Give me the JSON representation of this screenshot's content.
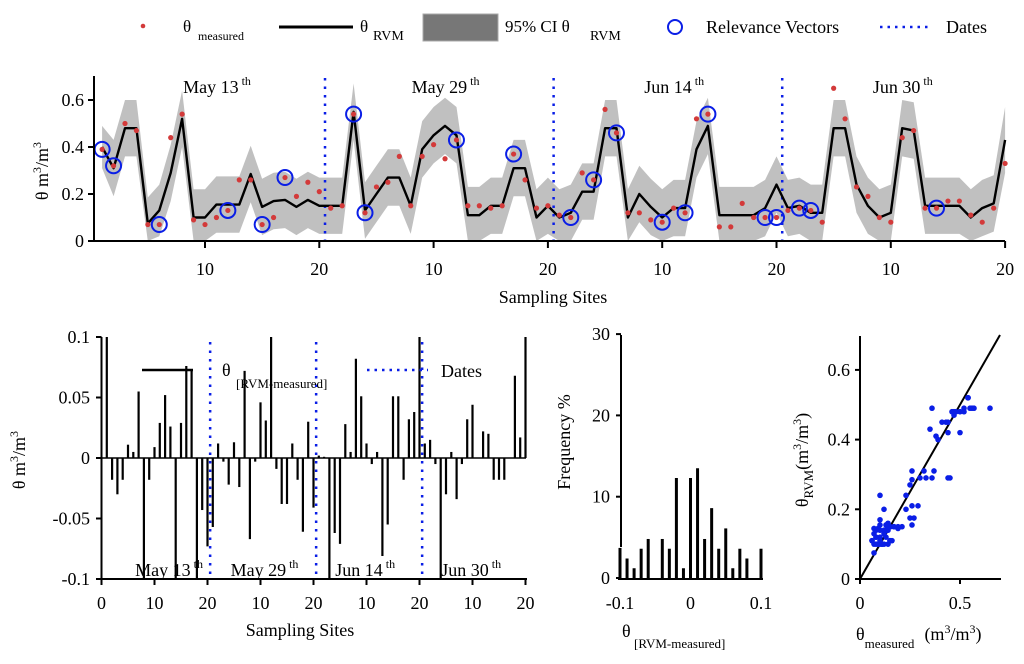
{
  "legend": {
    "items": [
      {
        "key": "measured",
        "symbol": "red-dot",
        "label": "θ",
        "sub": "measured"
      },
      {
        "key": "rvm",
        "symbol": "black-line",
        "label": "θ",
        "sub": "RVM"
      },
      {
        "key": "ci",
        "symbol": "gray-box",
        "label": "95% CI θ",
        "sub": "RVM"
      },
      {
        "key": "rv",
        "symbol": "blue-circle",
        "label": "Relevance Vectors",
        "sub": ""
      },
      {
        "key": "dates",
        "symbol": "blue-dotted-line",
        "label": "Dates",
        "sub": ""
      }
    ]
  },
  "colors": {
    "measured": "#d33a3a",
    "rvm_line": "#000000",
    "ci_band": "#c0c0c0",
    "legend_ci_box": "#777777",
    "relevance_vector": "#0a1ee6",
    "dates_line": "#0a1ee6",
    "scatter_point": "#0a1ee6",
    "bars": "#000000"
  },
  "chart_data": [
    {
      "id": "timeseries",
      "type": "line",
      "title": "",
      "xlabel": "Sampling Sites",
      "ylabel": "θ m³/m³",
      "ylabel_parts": {
        "base": "θ m",
        "sup1": "3",
        "mid": "/m",
        "sup2": "3"
      },
      "ylim": [
        0,
        0.7
      ],
      "yticks": [
        0,
        0.2,
        0.4,
        0.6
      ],
      "ytick_labels": [
        "0",
        "0.2",
        "0.4",
        "0.6"
      ],
      "xlim": [
        0.5,
        80
      ],
      "xticks": [
        10,
        20,
        30,
        40,
        50,
        60,
        70,
        80
      ],
      "xtick_labels": [
        "10",
        "20",
        "10",
        "20",
        "10",
        "20",
        "10",
        "20"
      ],
      "date_lines": [
        20.5,
        40.5,
        60.5
      ],
      "date_labels": [
        {
          "text": "May 13",
          "sup": "th",
          "site": 10
        },
        {
          "text": "May 29",
          "sup": "th",
          "site": 30
        },
        {
          "text": "Jun 14",
          "sup": "th",
          "site": 50
        },
        {
          "text": "Jun 30",
          "sup": "th",
          "site": 70
        }
      ],
      "rvm": [
        0.4,
        0.31,
        0.48,
        0.48,
        0.075,
        0.13,
        0.29,
        0.52,
        0.1,
        0.1,
        0.155,
        0.155,
        0.155,
        0.285,
        0.145,
        0.17,
        0.175,
        0.145,
        0.175,
        0.15,
        0.15,
        0.15,
        0.55,
        0.13,
        0.2,
        0.27,
        0.27,
        0.15,
        0.39,
        0.45,
        0.49,
        0.45,
        0.11,
        0.11,
        0.15,
        0.15,
        0.31,
        0.31,
        0.1,
        0.15,
        0.1,
        0.12,
        0.21,
        0.21,
        0.48,
        0.48,
        0.1,
        0.2,
        0.145,
        0.1,
        0.14,
        0.14,
        0.39,
        0.49,
        0.11,
        0.11,
        0.11,
        0.11,
        0.14,
        0.24,
        0.14,
        0.15,
        0.12,
        0.12,
        0.48,
        0.48,
        0.24,
        0.15,
        0.1,
        0.12,
        0.48,
        0.47,
        0.15,
        0.15,
        0.15,
        0.15,
        0.1,
        0.14,
        0.16,
        0.43
      ],
      "ci_halfwidth": [
        0.09,
        0.12,
        0.12,
        0.12,
        0.11,
        0.11,
        0.12,
        0.12,
        0.12,
        0.12,
        0.12,
        0.12,
        0.12,
        0.12,
        0.12,
        0.12,
        0.12,
        0.12,
        0.12,
        0.12,
        0.12,
        0.12,
        0.12,
        0.12,
        0.12,
        0.12,
        0.12,
        0.12,
        0.12,
        0.12,
        0.12,
        0.12,
        0.12,
        0.12,
        0.12,
        0.12,
        0.12,
        0.12,
        0.12,
        0.12,
        0.12,
        0.12,
        0.12,
        0.12,
        0.12,
        0.12,
        0.12,
        0.12,
        0.12,
        0.12,
        0.12,
        0.12,
        0.12,
        0.12,
        0.12,
        0.12,
        0.12,
        0.12,
        0.12,
        0.12,
        0.12,
        0.12,
        0.12,
        0.12,
        0.12,
        0.12,
        0.12,
        0.12,
        0.12,
        0.12,
        0.12,
        0.12,
        0.12,
        0.12,
        0.12,
        0.12,
        0.12,
        0.12,
        0.12,
        0.14
      ],
      "measured": [
        0.39,
        0.32,
        0.5,
        0.47,
        0.07,
        0.07,
        0.44,
        0.54,
        0.09,
        0.07,
        0.1,
        0.13,
        0.26,
        0.26,
        0.07,
        0.1,
        0.27,
        0.19,
        0.25,
        0.21,
        0.14,
        0.15,
        0.54,
        0.12,
        0.23,
        0.25,
        0.36,
        0.15,
        0.36,
        0.41,
        0.35,
        0.43,
        0.15,
        0.15,
        0.14,
        0.15,
        0.37,
        0.26,
        0.14,
        0.15,
        0.11,
        0.1,
        0.29,
        0.26,
        0.56,
        0.46,
        0.12,
        0.12,
        0.09,
        0.08,
        0.14,
        0.12,
        0.52,
        0.54,
        0.06,
        0.06,
        0.16,
        0.1,
        0.1,
        0.1,
        0.13,
        0.14,
        0.13,
        0.08,
        0.65,
        0.52,
        0.23,
        0.19,
        0.1,
        0.08,
        0.44,
        0.47,
        0.14,
        0.14,
        0.17,
        0.17,
        0.11,
        0.08,
        0.14,
        0.33
      ],
      "relevance_vector_sites": [
        1,
        2,
        6,
        12,
        15,
        17,
        23,
        24,
        32,
        37,
        42,
        44,
        46,
        50,
        52,
        54,
        59,
        60,
        62,
        63,
        74
      ]
    },
    {
      "id": "residuals",
      "type": "bar",
      "xlabel": "Sampling Sites",
      "ylabel": "θ m³/m³",
      "ylim": [
        -0.1,
        0.1
      ],
      "yticks": [
        -0.1,
        -0.05,
        0,
        0.05,
        0.1
      ],
      "ytick_labels": [
        "-0.1",
        "-0.05",
        "0",
        "0.05",
        "0.1"
      ],
      "xticks": [
        0,
        10,
        20,
        30,
        40,
        50,
        60,
        70,
        80
      ],
      "xtick_labels": [
        "0",
        "10",
        "20",
        "10",
        "20",
        "10",
        "20",
        "10",
        "20"
      ],
      "date_lines": [
        20.5,
        40.5,
        60.5
      ],
      "date_labels": [
        {
          "text": "May 13",
          "sup": "th",
          "site": 12
        },
        {
          "text": "May 29",
          "sup": "th",
          "site": 30
        },
        {
          "text": "Jun 14",
          "sup": "th",
          "site": 49
        },
        {
          "text": "Jun 30",
          "sup": "th",
          "site": 69
        }
      ],
      "legend": [
        {
          "symbol": "black-line",
          "label": "θ",
          "sub": "[RVM-measured]"
        },
        {
          "symbol": "blue-dotted-line",
          "label": "Dates"
        }
      ],
      "values": [
        0.1,
        -0.018,
        -0.03,
        -0.018,
        0.011,
        0.005,
        0.055,
        -0.1,
        -0.018,
        0.009,
        0.029,
        0.052,
        0.026,
        -0.1,
        0.029,
        0.076,
        0.072,
        -0.1,
        -0.043,
        -0.073,
        -0.057,
        0.012,
        -0.003,
        -0.022,
        0.013,
        -0.024,
        0.072,
        -0.067,
        -0.003,
        0.046,
        0.031,
        0.1,
        -0.009,
        -0.038,
        -0.038,
        0.012,
        -0.018,
        -0.061,
        0.03,
        -0.041,
        0.002,
        0.001,
        -0.1,
        -0.062,
        -0.071,
        0.028,
        0.005,
        0.082,
        0.051,
        0.012,
        -0.005,
        0.005,
        -0.081,
        -0.055,
        0.051,
        0.051,
        -0.018,
        0.032,
        0.038,
        0.1,
        0.012,
        0.015,
        -0.005,
        -0.1,
        -0.03,
        0.005,
        -0.034,
        -0.005,
        0.032,
        0.044,
        0.0,
        0.022,
        0.02,
        -0.018,
        -0.018,
        -0.018,
        0.0,
        0.068,
        0.017,
        0.1
      ]
    },
    {
      "id": "histogram",
      "type": "bar",
      "xlabel": "θ[RVM-measured]",
      "xlabel_parts": {
        "base": "θ",
        "sub": "[RVM-measured]"
      },
      "ylabel": "Frequency %",
      "xlim": [
        -0.1,
        0.1
      ],
      "ylim": [
        0,
        30
      ],
      "xticks": [
        -0.1,
        0,
        0.1
      ],
      "xtick_labels": [
        "-0.1",
        "0",
        "0.1"
      ],
      "yticks": [
        0,
        10,
        20,
        30
      ],
      "ytick_labels": [
        "0",
        "10",
        "20",
        "30"
      ],
      "bins": [
        -0.1,
        -0.09,
        -0.08,
        -0.07,
        -0.06,
        -0.05,
        -0.04,
        -0.03,
        -0.02,
        -0.01,
        0,
        0.01,
        0.02,
        0.03,
        0.04,
        0.05,
        0.06,
        0.07,
        0.08,
        0.09,
        0.1
      ],
      "values": [
        3.7,
        2.4,
        1.2,
        3.6,
        4.8,
        0,
        4.8,
        3.6,
        12.3,
        1.2,
        12.3,
        13.5,
        4.8,
        8.6,
        3.6,
        6.1,
        1.2,
        3.6,
        2.4,
        0,
        3.6
      ]
    },
    {
      "id": "scatter",
      "type": "scatter",
      "xlabel": "θmeasured (m³/m³)",
      "xlabel_parts": {
        "base": "θ",
        "sub": "measured",
        "unit": "(m",
        "sup": "3",
        "unit2": "/m",
        "sup2": "3",
        "unit3": ")"
      },
      "ylabel": "θRVM (m³/m³)",
      "ylabel_parts": {
        "base": "θ",
        "sub": "RVM",
        "unit": "(m",
        "sup": "3",
        "unit2": "/m",
        "sup2": "3",
        "unit3": ")"
      },
      "xlim": [
        0,
        0.7
      ],
      "ylim": [
        0,
        0.7
      ],
      "xticks": [
        0,
        0.5
      ],
      "xtick_labels": [
        "0",
        "0.5"
      ],
      "yticks": [
        0,
        0.2,
        0.4,
        0.6
      ],
      "ytick_labels": [
        "0",
        "0.2",
        "0.4",
        "0.6"
      ],
      "reference_line": "1:1",
      "points": [
        [
          0.39,
          0.4
        ],
        [
          0.32,
          0.31
        ],
        [
          0.5,
          0.48
        ],
        [
          0.47,
          0.48
        ],
        [
          0.07,
          0.075
        ],
        [
          0.07,
          0.13
        ],
        [
          0.44,
          0.29
        ],
        [
          0.54,
          0.52
        ],
        [
          0.09,
          0.1
        ],
        [
          0.07,
          0.1
        ],
        [
          0.1,
          0.155
        ],
        [
          0.13,
          0.155
        ],
        [
          0.26,
          0.155
        ],
        [
          0.26,
          0.285
        ],
        [
          0.07,
          0.145
        ],
        [
          0.1,
          0.17
        ],
        [
          0.27,
          0.175
        ],
        [
          0.19,
          0.145
        ],
        [
          0.25,
          0.175
        ],
        [
          0.21,
          0.15
        ],
        [
          0.14,
          0.15
        ],
        [
          0.15,
          0.15
        ],
        [
          0.54,
          0.52
        ],
        [
          0.12,
          0.13
        ],
        [
          0.23,
          0.2
        ],
        [
          0.25,
          0.27
        ],
        [
          0.36,
          0.29
        ],
        [
          0.15,
          0.15
        ],
        [
          0.36,
          0.49
        ],
        [
          0.41,
          0.45
        ],
        [
          0.35,
          0.43
        ],
        [
          0.43,
          0.45
        ],
        [
          0.15,
          0.11
        ],
        [
          0.15,
          0.11
        ],
        [
          0.14,
          0.15
        ],
        [
          0.15,
          0.15
        ],
        [
          0.37,
          0.31
        ],
        [
          0.26,
          0.31
        ],
        [
          0.14,
          0.1
        ],
        [
          0.15,
          0.15
        ],
        [
          0.11,
          0.1
        ],
        [
          0.1,
          0.12
        ],
        [
          0.29,
          0.21
        ],
        [
          0.26,
          0.21
        ],
        [
          0.56,
          0.49
        ],
        [
          0.46,
          0.48
        ],
        [
          0.12,
          0.1
        ],
        [
          0.12,
          0.2
        ],
        [
          0.09,
          0.145
        ],
        [
          0.08,
          0.1
        ],
        [
          0.14,
          0.14
        ],
        [
          0.12,
          0.14
        ],
        [
          0.52,
          0.49
        ],
        [
          0.54,
          0.52
        ],
        [
          0.06,
          0.11
        ],
        [
          0.06,
          0.11
        ],
        [
          0.16,
          0.11
        ],
        [
          0.1,
          0.11
        ],
        [
          0.1,
          0.14
        ],
        [
          0.1,
          0.24
        ],
        [
          0.13,
          0.14
        ],
        [
          0.14,
          0.15
        ],
        [
          0.13,
          0.12
        ],
        [
          0.08,
          0.12
        ],
        [
          0.65,
          0.49
        ],
        [
          0.52,
          0.48
        ],
        [
          0.23,
          0.24
        ],
        [
          0.19,
          0.15
        ],
        [
          0.1,
          0.1
        ],
        [
          0.08,
          0.12
        ],
        [
          0.44,
          0.42
        ],
        [
          0.47,
          0.47
        ],
        [
          0.14,
          0.15
        ],
        [
          0.14,
          0.15
        ],
        [
          0.17,
          0.15
        ],
        [
          0.17,
          0.15
        ],
        [
          0.11,
          0.1
        ],
        [
          0.08,
          0.14
        ],
        [
          0.14,
          0.16
        ],
        [
          0.33,
          0.29
        ],
        [
          0.45,
          0.29
        ],
        [
          0.5,
          0.42
        ],
        [
          0.3,
          0.29
        ],
        [
          0.38,
          0.41
        ],
        [
          0.44,
          0.45
        ],
        [
          0.48,
          0.48
        ],
        [
          0.55,
          0.49
        ],
        [
          0.57,
          0.49
        ]
      ]
    }
  ]
}
